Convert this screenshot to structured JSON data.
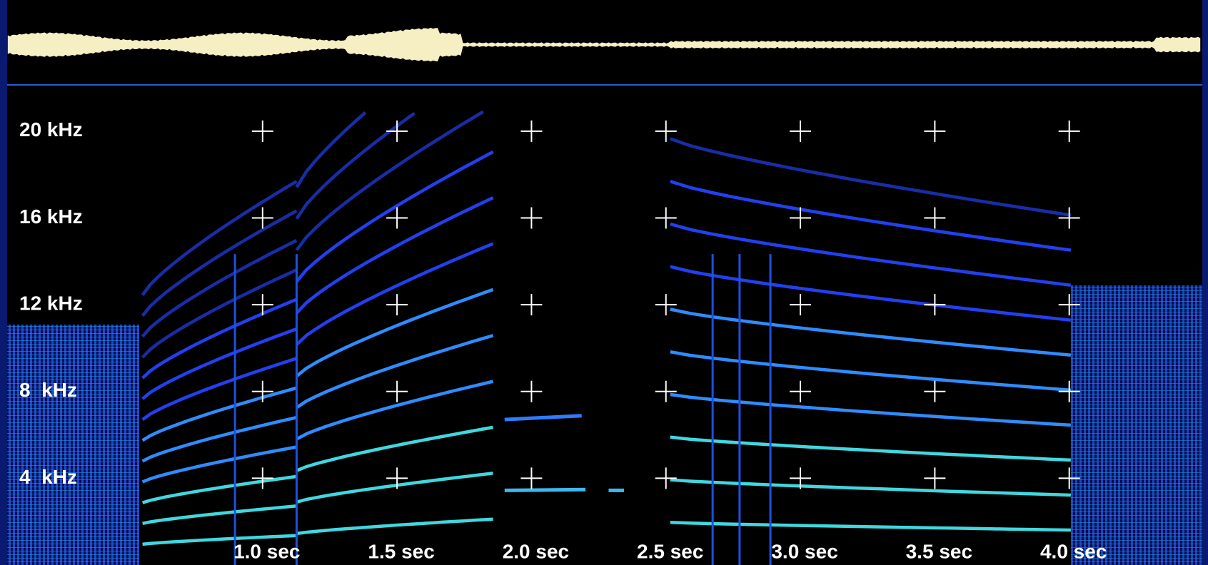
{
  "chart_data": {
    "type": "spectrogram",
    "xlim": [
      0.05,
      4.5
    ],
    "ylim": [
      0,
      22
    ],
    "xticks": [
      {
        "value": 1.0,
        "label": "1.0 sec"
      },
      {
        "value": 1.5,
        "label": "1.5 sec"
      },
      {
        "value": 2.0,
        "label": "2.0 sec"
      },
      {
        "value": 2.5,
        "label": "2.5 sec"
      },
      {
        "value": 3.0,
        "label": "3.0 sec"
      },
      {
        "value": 3.5,
        "label": "3.5 sec"
      },
      {
        "value": 4.0,
        "label": "4.0 sec"
      }
    ],
    "yticks": [
      {
        "value": 20,
        "label": "20 kHz"
      },
      {
        "value": 16,
        "label": "16 kHz"
      },
      {
        "value": 12,
        "label": "12 kHz"
      },
      {
        "value": 8,
        "label": "8  kHz"
      },
      {
        "value": 4,
        "label": "4  kHz"
      }
    ],
    "grid": true
  }
}
